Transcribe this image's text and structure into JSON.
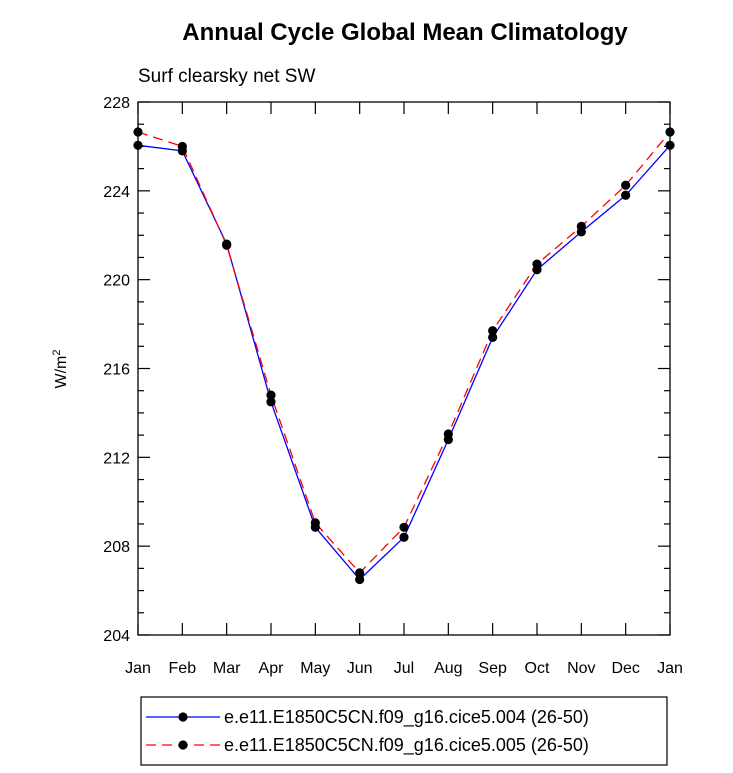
{
  "chart_data": {
    "type": "line",
    "title": "Annual Cycle Global Mean Climatology",
    "subtitle": "Surf clearsky net SW",
    "ylabel_main": "W/m",
    "ylabel_sup": "2",
    "xlabel": "",
    "categories": [
      "Jan",
      "Feb",
      "Mar",
      "Apr",
      "May",
      "Jun",
      "Jul",
      "Aug",
      "Sep",
      "Oct",
      "Nov",
      "Dec",
      "Jan"
    ],
    "ylim": [
      204,
      228
    ],
    "yticks": [
      204,
      208,
      212,
      216,
      220,
      224,
      228
    ],
    "grid": false,
    "legend_position": "bottom",
    "series": [
      {
        "name": "e.e11.E1850C5CN.f09_g16.cice5.004 (26-50)",
        "color": "#0000ff",
        "dash": "solid",
        "values": [
          226.05,
          225.8,
          221.6,
          214.5,
          208.85,
          206.5,
          208.4,
          212.8,
          217.4,
          220.45,
          222.15,
          223.8,
          226.05
        ]
      },
      {
        "name": "e.e11.E1850C5CN.f09_g16.cice5.005 (26-50)",
        "color": "#ff0000",
        "dash": "dashed",
        "values": [
          226.65,
          226.0,
          221.55,
          214.8,
          209.05,
          206.8,
          208.85,
          213.05,
          217.7,
          220.7,
          222.4,
          224.25,
          226.65
        ]
      }
    ]
  }
}
